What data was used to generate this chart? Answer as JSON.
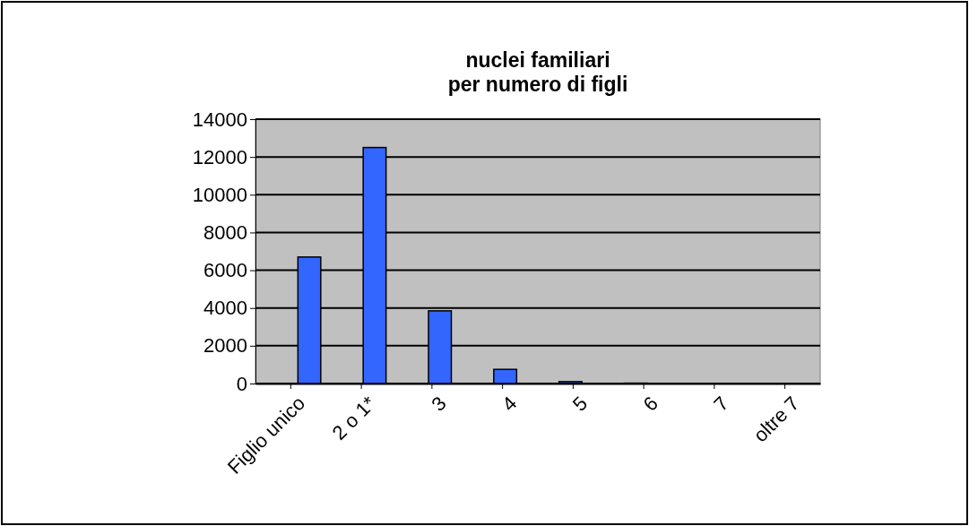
{
  "chart_data": {
    "type": "bar",
    "title": "nuclei familiari\nper numero di figli",
    "categories": [
      "Figlio unico",
      "2 o 1*",
      "3",
      "4",
      "5",
      "6",
      "7",
      "oltre 7"
    ],
    "values": [
      6700,
      12500,
      3850,
      750,
      100,
      20,
      10,
      10
    ],
    "color": "#3366ff",
    "ylim": [
      0,
      14000
    ],
    "yticks": [
      0,
      2000,
      4000,
      6000,
      8000,
      10000,
      12000,
      14000
    ],
    "grid": "y"
  }
}
